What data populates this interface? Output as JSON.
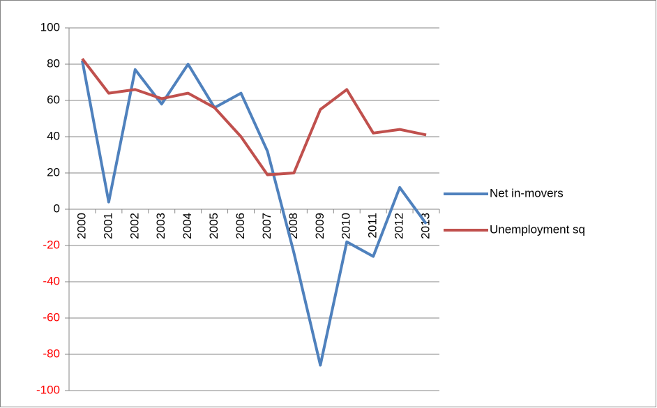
{
  "chart_data": {
    "type": "line",
    "categories": [
      "2000",
      "2001",
      "2002",
      "2003",
      "2004",
      "2005",
      "2006",
      "2007",
      "2008",
      "2009",
      "2010",
      "2011",
      "2012",
      "2013"
    ],
    "series": [
      {
        "name": "Net in-movers",
        "color": "#4f81bd",
        "values": [
          82,
          4,
          77,
          58,
          80,
          56,
          64,
          32,
          -24,
          -86,
          -18,
          -26,
          12,
          -8
        ]
      },
      {
        "name": "Unemployment sq",
        "color": "#c0504d",
        "values": [
          83,
          64,
          66,
          61,
          64,
          56,
          40,
          19,
          20,
          55,
          66,
          42,
          44,
          41
        ]
      }
    ],
    "ylim": [
      -100,
      100
    ],
    "yticks": [
      -100,
      -80,
      -60,
      -40,
      -20,
      0,
      20,
      40,
      60,
      80,
      100
    ],
    "grid": true,
    "negative_tick_color": "#ff0000",
    "legend": "right"
  }
}
